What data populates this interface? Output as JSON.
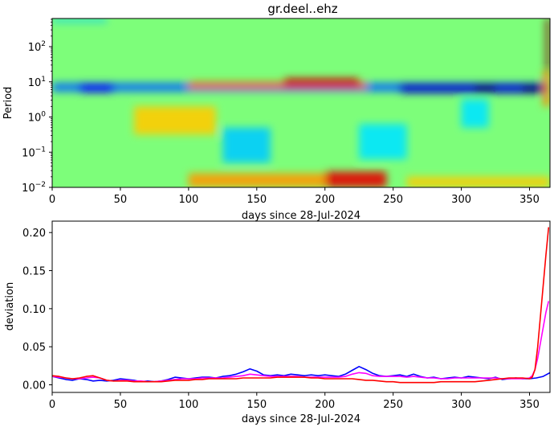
{
  "chart_data": [
    {
      "type": "heatmap",
      "title": "gr.deel..ehz",
      "xlabel": "days since 28-Jul-2024",
      "ylabel": "Period",
      "xlim": [
        0,
        365
      ],
      "xticks": [
        "0",
        "50",
        "100",
        "150",
        "200",
        "250",
        "300",
        "350"
      ],
      "ylim_log10": [
        -2,
        2.8
      ],
      "yticks": [
        {
          "base": "10",
          "exp": "−2",
          "value": -2
        },
        {
          "base": "10",
          "exp": "−1",
          "value": -1
        },
        {
          "base": "10",
          "exp": "0",
          "value": 0
        },
        {
          "base": "10",
          "exp": "1",
          "value": 1
        },
        {
          "base": "10",
          "exp": "2",
          "value": 2
        }
      ],
      "colormap": "jet",
      "features": [
        {
          "x0": 0,
          "x1": 365,
          "y0": 0.72,
          "y1": 0.97,
          "v": -0.55
        },
        {
          "x0": 20,
          "x1": 45,
          "y0": 0.7,
          "y1": 0.95,
          "v": -0.75
        },
        {
          "x0": 100,
          "x1": 230,
          "y0": 0.8,
          "y1": 1.0,
          "v": 0.55
        },
        {
          "x0": 170,
          "x1": 225,
          "y0": 0.85,
          "y1": 1.1,
          "v": 0.85
        },
        {
          "x0": 255,
          "x1": 365,
          "y0": 0.68,
          "y1": 0.95,
          "v": -0.85
        },
        {
          "x0": 310,
          "x1": 325,
          "y0": 0.68,
          "y1": 0.95,
          "v": -1.0
        },
        {
          "x0": 345,
          "x1": 362,
          "y0": 0.68,
          "y1": 0.95,
          "v": -1.0
        },
        {
          "x0": 0,
          "x1": 40,
          "y0": 2.7,
          "y1": 2.8,
          "v": -0.35
        },
        {
          "x0": 125,
          "x1": 160,
          "y0": -1.3,
          "y1": -0.3,
          "v": -0.35
        },
        {
          "x0": 225,
          "x1": 260,
          "y0": -1.2,
          "y1": -0.2,
          "v": -0.3
        },
        {
          "x0": 60,
          "x1": 120,
          "y0": -0.5,
          "y1": 0.3,
          "v": 0.35
        },
        {
          "x0": 100,
          "x1": 200,
          "y0": -2.0,
          "y1": -1.6,
          "v": 0.45
        },
        {
          "x0": 200,
          "x1": 245,
          "y0": -2.0,
          "y1": -1.55,
          "v": 0.8
        },
        {
          "x0": 260,
          "x1": 365,
          "y0": -2.0,
          "y1": -1.7,
          "v": 0.35
        },
        {
          "x0": 300,
          "x1": 320,
          "y0": -0.3,
          "y1": 0.5,
          "v": -0.3
        },
        {
          "x0": 362,
          "x1": 365,
          "y0": 1.3,
          "y1": 2.8,
          "v": 1.0
        },
        {
          "x0": 360,
          "x1": 365,
          "y0": 0.3,
          "y1": 1.3,
          "v": 0.5
        }
      ]
    },
    {
      "type": "line",
      "xlabel": "days since 28-Jul-2024",
      "ylabel": "deviation",
      "xlim": [
        0,
        365
      ],
      "ylim": [
        -0.01,
        0.215
      ],
      "xticks": [
        "0",
        "50",
        "100",
        "150",
        "200",
        "250",
        "300",
        "350"
      ],
      "yticks": [
        "0.00",
        "0.05",
        "0.10",
        "0.15",
        "0.20"
      ],
      "series": [
        {
          "name": "blue",
          "color": "#0000ff",
          "x": [
            0,
            5,
            10,
            15,
            20,
            25,
            30,
            35,
            40,
            45,
            50,
            55,
            60,
            65,
            70,
            75,
            80,
            85,
            90,
            95,
            100,
            105,
            110,
            115,
            120,
            125,
            130,
            135,
            140,
            145,
            150,
            155,
            160,
            165,
            170,
            175,
            180,
            185,
            190,
            195,
            200,
            205,
            210,
            215,
            220,
            225,
            230,
            235,
            240,
            245,
            250,
            255,
            260,
            265,
            270,
            275,
            280,
            285,
            290,
            295,
            300,
            305,
            310,
            315,
            320,
            325,
            330,
            335,
            340,
            345,
            350,
            355,
            360,
            365
          ],
          "y": [
            0.011,
            0.009,
            0.007,
            0.006,
            0.008,
            0.007,
            0.005,
            0.006,
            0.005,
            0.006,
            0.008,
            0.007,
            0.006,
            0.004,
            0.005,
            0.004,
            0.005,
            0.007,
            0.01,
            0.009,
            0.008,
            0.009,
            0.01,
            0.01,
            0.009,
            0.011,
            0.012,
            0.014,
            0.017,
            0.021,
            0.018,
            0.013,
            0.012,
            0.013,
            0.012,
            0.014,
            0.013,
            0.012,
            0.013,
            0.012,
            0.013,
            0.012,
            0.011,
            0.014,
            0.019,
            0.024,
            0.02,
            0.015,
            0.012,
            0.011,
            0.012,
            0.013,
            0.011,
            0.014,
            0.011,
            0.009,
            0.01,
            0.008,
            0.009,
            0.01,
            0.009,
            0.011,
            0.01,
            0.009,
            0.008,
            0.01,
            0.007,
            0.008,
            0.009,
            0.008,
            0.008,
            0.009,
            0.011,
            0.016
          ]
        },
        {
          "name": "magenta",
          "color": "#ff00ff",
          "x": [
            0,
            5,
            10,
            15,
            20,
            25,
            30,
            35,
            40,
            45,
            50,
            55,
            60,
            65,
            70,
            75,
            80,
            85,
            90,
            95,
            100,
            105,
            110,
            115,
            120,
            125,
            130,
            135,
            140,
            145,
            150,
            155,
            160,
            165,
            170,
            175,
            180,
            185,
            190,
            195,
            200,
            205,
            210,
            215,
            220,
            225,
            230,
            235,
            240,
            245,
            250,
            255,
            260,
            265,
            270,
            275,
            280,
            285,
            290,
            295,
            300,
            305,
            310,
            315,
            320,
            325,
            330,
            335,
            340,
            345,
            350,
            352,
            354,
            356,
            358,
            360,
            362,
            364
          ],
          "y": [
            0.011,
            0.01,
            0.009,
            0.008,
            0.008,
            0.009,
            0.01,
            0.009,
            0.006,
            0.005,
            0.006,
            0.006,
            0.005,
            0.005,
            0.004,
            0.004,
            0.005,
            0.006,
            0.007,
            0.008,
            0.008,
            0.008,
            0.009,
            0.009,
            0.009,
            0.009,
            0.01,
            0.011,
            0.012,
            0.014,
            0.013,
            0.012,
            0.011,
            0.011,
            0.011,
            0.011,
            0.011,
            0.01,
            0.01,
            0.01,
            0.01,
            0.01,
            0.01,
            0.011,
            0.014,
            0.016,
            0.015,
            0.012,
            0.011,
            0.011,
            0.011,
            0.011,
            0.01,
            0.011,
            0.01,
            0.009,
            0.009,
            0.008,
            0.008,
            0.009,
            0.009,
            0.009,
            0.009,
            0.009,
            0.009,
            0.009,
            0.008,
            0.008,
            0.008,
            0.008,
            0.009,
            0.012,
            0.02,
            0.035,
            0.055,
            0.075,
            0.095,
            0.11
          ]
        },
        {
          "name": "red",
          "color": "#ff0000",
          "x": [
            0,
            5,
            10,
            15,
            20,
            25,
            30,
            35,
            40,
            45,
            50,
            55,
            60,
            65,
            70,
            75,
            80,
            85,
            90,
            95,
            100,
            105,
            110,
            115,
            120,
            125,
            130,
            135,
            140,
            145,
            150,
            155,
            160,
            165,
            170,
            175,
            180,
            185,
            190,
            195,
            200,
            205,
            210,
            215,
            220,
            225,
            230,
            235,
            240,
            245,
            250,
            255,
            260,
            265,
            270,
            275,
            280,
            285,
            290,
            295,
            300,
            305,
            310,
            315,
            320,
            325,
            330,
            335,
            340,
            345,
            350,
            352,
            354,
            356,
            358,
            360,
            362,
            364
          ],
          "y": [
            0.012,
            0.011,
            0.009,
            0.008,
            0.009,
            0.011,
            0.012,
            0.009,
            0.006,
            0.005,
            0.005,
            0.005,
            0.004,
            0.004,
            0.004,
            0.004,
            0.004,
            0.005,
            0.006,
            0.006,
            0.006,
            0.007,
            0.007,
            0.008,
            0.008,
            0.008,
            0.008,
            0.008,
            0.009,
            0.009,
            0.009,
            0.009,
            0.009,
            0.01,
            0.01,
            0.01,
            0.01,
            0.01,
            0.009,
            0.009,
            0.008,
            0.008,
            0.008,
            0.008,
            0.008,
            0.007,
            0.006,
            0.006,
            0.005,
            0.004,
            0.004,
            0.003,
            0.003,
            0.003,
            0.003,
            0.003,
            0.003,
            0.004,
            0.004,
            0.004,
            0.004,
            0.004,
            0.004,
            0.005,
            0.006,
            0.007,
            0.008,
            0.009,
            0.009,
            0.009,
            0.008,
            0.01,
            0.02,
            0.05,
            0.09,
            0.13,
            0.17,
            0.207
          ]
        }
      ]
    }
  ]
}
